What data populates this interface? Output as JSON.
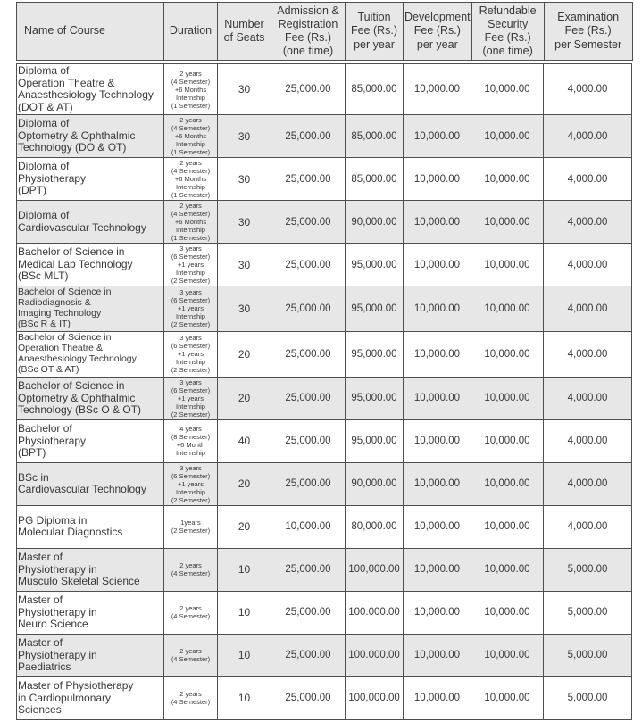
{
  "table": {
    "columns": [
      {
        "id": "name",
        "label": "Name of Course",
        "label_lines": [
          "Name of Course"
        ]
      },
      {
        "id": "duration",
        "label": "Duration",
        "label_lines": [
          "Duration"
        ]
      },
      {
        "id": "seats",
        "label": "Number of Seats",
        "label_lines": [
          "Number",
          "of Seats"
        ]
      },
      {
        "id": "admission",
        "label": "Admission & Registration Fee (Rs.) (one time)",
        "label_lines": [
          "Admission &",
          "Registration",
          "Fee (Rs.)",
          "(one time)"
        ]
      },
      {
        "id": "tuition",
        "label": "Tuition Fee (Rs.) per year",
        "label_lines": [
          "Tuition",
          "Fee (Rs.)",
          "per year"
        ]
      },
      {
        "id": "development",
        "label": "Development Fee (Rs.) per year",
        "label_lines": [
          "Development",
          "Fee (Rs.)",
          "per year"
        ]
      },
      {
        "id": "security",
        "label": "Refundable Security Fee (Rs.) (one time)",
        "label_lines": [
          "Refundable",
          "Security",
          "Fee (Rs.)",
          "(one time)"
        ]
      },
      {
        "id": "exam",
        "label": "Examination Fee (Rs.) per Semester",
        "label_lines": [
          "Examination",
          "Fee (Rs.)",
          "per Semester"
        ]
      }
    ],
    "rows": [
      {
        "name_lines": [
          "Diploma of",
          "Operation Theatre &",
          "Anaesthesiology Technology",
          "(DOT & AT)"
        ],
        "duration_lines": [
          "2 years",
          "(4 Semester)",
          "+6 Months",
          "Internship",
          "(1 Semester)"
        ],
        "seats": "30",
        "admission": "25,000.00",
        "tuition": "85,000.00",
        "development": "10,000.00",
        "security": "10,000.00",
        "exam": "4,000.00",
        "shaded": false,
        "small_name": false
      },
      {
        "name_lines": [
          "Diploma of",
          "Optometry & Ophthalmic",
          "Technology (DO & OT)"
        ],
        "duration_lines": [
          "2 years",
          "(4 Semester)",
          "+6 Months",
          "Internship",
          "(1 Semester)"
        ],
        "seats": "30",
        "admission": "25,000.00",
        "tuition": "85,000.00",
        "development": "10,000.00",
        "security": "10,000.00",
        "exam": "4,000.00",
        "shaded": true,
        "small_name": false
      },
      {
        "name_lines": [
          "Diploma of",
          "Physiotherapy",
          "(DPT)"
        ],
        "duration_lines": [
          "2 years",
          "(4 Semester)",
          "+6 Months",
          "Internship",
          "(1 Semester)"
        ],
        "seats": "30",
        "admission": "25,000.00",
        "tuition": "85,000.00",
        "development": "10,000.00",
        "security": "10,000.00",
        "exam": "4,000.00",
        "shaded": false,
        "small_name": false
      },
      {
        "name_lines": [
          "Diploma of",
          "Cardiovascular Technology"
        ],
        "duration_lines": [
          "2 years",
          "(4 Semester)",
          "+6 Months",
          "Internship",
          "(1 Semester)"
        ],
        "seats": "30",
        "admission": "25,000.00",
        "tuition": "90,000.00",
        "development": "10,000.00",
        "security": "10,000.00",
        "exam": "4,000.00",
        "shaded": true,
        "small_name": false
      },
      {
        "name_lines": [
          "Bachelor of Science in",
          "Medical Lab Technology",
          "(BSc MLT)"
        ],
        "duration_lines": [
          "3 years",
          "(6 Semester)",
          "+1 years",
          "Internship",
          "(2 Semester)"
        ],
        "seats": "30",
        "admission": "25,000.00",
        "tuition": "95,000.00",
        "development": "10,000.00",
        "security": "10,000.00",
        "exam": "4,000.00",
        "shaded": false,
        "small_name": false
      },
      {
        "name_lines": [
          "Bachelor of Science in",
          "Radiodiagnosis &",
          "Imaging Technology",
          "(BSc R & IT)"
        ],
        "duration_lines": [
          "3 years",
          "(6 Semester)",
          "+1 years",
          "Internship",
          "(2 Semester)"
        ],
        "seats": "30",
        "admission": "25,000.00",
        "tuition": "95,000.00",
        "development": "10,000.00",
        "security": "10,000.00",
        "exam": "4,000.00",
        "shaded": true,
        "small_name": true
      },
      {
        "name_lines": [
          "Bachelor of Science in",
          "Operation Theatre &",
          "Anaesthesiology Technology",
          "(BSc OT & AT)"
        ],
        "duration_lines": [
          "3 years",
          "(6 Semester)",
          "+1 years",
          "Internship",
          "(2 Semester)"
        ],
        "seats": "20",
        "admission": "25,000.00",
        "tuition": "95,000.00",
        "development": "10,000.00",
        "security": "10,000.00",
        "exam": "4,000.00",
        "shaded": false,
        "small_name": true
      },
      {
        "name_lines": [
          "Bachelor of Science in",
          "Optometry & Ophthalmic",
          "Technology (BSc O & OT)"
        ],
        "duration_lines": [
          "3 years",
          "(6 Semester)",
          "+1 years",
          "Internship",
          "(2 Semester)"
        ],
        "seats": "20",
        "admission": "25,000.00",
        "tuition": "95,000.00",
        "development": "10,000.00",
        "security": "10,000.00",
        "exam": "4,000.00",
        "shaded": true,
        "small_name": false
      },
      {
        "name_lines": [
          "Bachelor of",
          "Physiotherapy",
          "(BPT)"
        ],
        "duration_lines": [
          "4 years",
          "(8 Semester)",
          "+6 Month",
          "Internship"
        ],
        "seats": "40",
        "admission": "25,000.00",
        "tuition": "95,000.00",
        "development": "10,000.00",
        "security": "10,000.00",
        "exam": "4,000.00",
        "shaded": false,
        "small_name": false
      },
      {
        "name_lines": [
          "BSc in",
          "Cardiovascular Technology"
        ],
        "duration_lines": [
          "3 years",
          "(6 Semester)",
          "+1 years",
          "Internship",
          "(2 Semester)"
        ],
        "seats": "20",
        "admission": "25,000.00",
        "tuition": "90,000.00",
        "development": "10,000.00",
        "security": "10,000.00",
        "exam": "4,000.00",
        "shaded": true,
        "small_name": false
      },
      {
        "name_lines": [
          "PG Diploma in",
          "Molecular Diagnostics"
        ],
        "duration_lines": [
          "1years",
          "(2 Semester)"
        ],
        "seats": "20",
        "admission": "10,000.00",
        "tuition": "80,000.00",
        "development": "10,000.00",
        "security": "10,000.00",
        "exam": "4,000.00",
        "shaded": false,
        "small_name": false
      },
      {
        "name_lines": [
          "Master of",
          "Physiotherapy in",
          "Musculo Skeletal Science"
        ],
        "duration_lines": [
          "2 years",
          "(4 Semester)"
        ],
        "seats": "10",
        "admission": "25,000.00",
        "tuition": "100,000.00",
        "development": "10,000.00",
        "security": "10,000.00",
        "exam": "5,000.00",
        "shaded": true,
        "small_name": false
      },
      {
        "name_lines": [
          "Master of",
          "Physiotherapy in",
          "Neuro Science"
        ],
        "duration_lines": [
          "2 years",
          "(4 Semester)"
        ],
        "seats": "10",
        "admission": "25,000.00",
        "tuition": "100.000.00",
        "development": "10,000.00",
        "security": "10,000.00",
        "exam": "5,000.00",
        "shaded": false,
        "small_name": false
      },
      {
        "name_lines": [
          "Master of",
          "Physiotherapy in",
          "Paediatrics"
        ],
        "duration_lines": [
          "2 years",
          "(4 Semester)"
        ],
        "seats": "10",
        "admission": "25,000.00",
        "tuition": "100.000.00",
        "development": "10,000.00",
        "security": "10,000.00",
        "exam": "5,000.00",
        "shaded": true,
        "small_name": false
      },
      {
        "name_lines": [
          "Master of Physiotherapy",
          "in Cardiopulmonary",
          "Sciences"
        ],
        "duration_lines": [
          "2 years",
          "(4 Semester)"
        ],
        "seats": "10",
        "admission": "25,000.00",
        "tuition": "100,000.00",
        "development": "10,000.00",
        "security": "10,000.00",
        "exam": "5,000.00",
        "shaded": false,
        "small_name": false
      }
    ]
  },
  "colors": {
    "row_shade": "#e7e7e7",
    "header_shade": "#e7e7e7",
    "border": "#4f4f4f",
    "text": "#383838",
    "page_background": "#ffffff"
  }
}
